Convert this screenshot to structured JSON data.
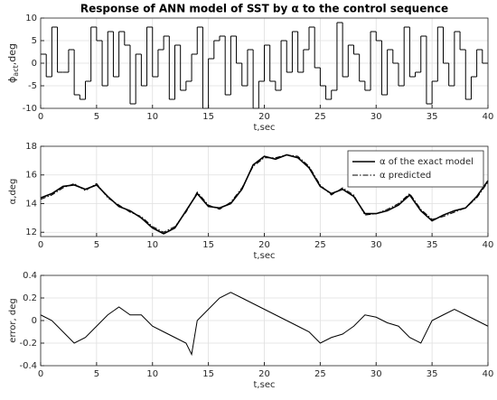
{
  "chart_data": [
    {
      "type": "step",
      "title": "Response of ANN model of SST by α to the control sequence",
      "ylabel": [
        "ϕ",
        "act",
        ",deg"
      ],
      "xlabel": "t,sec",
      "xlim": [
        0,
        40
      ],
      "xticks": [
        0,
        5,
        10,
        15,
        20,
        25,
        30,
        35,
        40
      ],
      "ylim": [
        -10,
        10
      ],
      "yticks": [
        -10,
        -5,
        0,
        5,
        10
      ],
      "grid": true,
      "x": [
        0,
        0.5,
        1,
        1.5,
        2,
        2.5,
        3,
        3.5,
        4,
        4.5,
        5,
        5.5,
        6,
        6.5,
        7,
        7.5,
        8,
        8.5,
        9,
        9.5,
        10,
        10.5,
        11,
        11.5,
        12,
        12.5,
        13,
        13.5,
        14,
        14.5,
        15,
        15.5,
        16,
        16.5,
        17,
        17.5,
        18,
        18.5,
        19,
        19.5,
        20,
        20.5,
        21,
        21.5,
        22,
        22.5,
        23,
        23.5,
        24,
        24.5,
        25,
        25.5,
        26,
        26.5,
        27,
        27.5,
        28,
        28.5,
        29,
        29.5,
        30,
        30.5,
        31,
        31.5,
        32,
        32.5,
        33,
        33.5,
        34,
        34.5,
        35,
        35.5,
        36,
        36.5,
        37,
        37.5,
        38,
        38.5,
        39,
        39.5
      ],
      "series": [
        {
          "color": "#000000",
          "values": [
            2,
            -3,
            8,
            -2,
            -2,
            3,
            -7,
            -8,
            -4,
            8,
            5,
            -5,
            7,
            -3,
            7,
            4,
            -9,
            2,
            -5,
            8,
            -3,
            3,
            6,
            -8,
            4,
            -6,
            -4,
            2,
            8,
            -10,
            1,
            5,
            6,
            -7,
            6,
            0,
            -5,
            3,
            -10,
            -4,
            4,
            -4,
            -6,
            5,
            -2,
            7,
            -2,
            3,
            8,
            -1,
            -5,
            -8,
            -6,
            9,
            -3,
            4,
            2,
            -4,
            -6,
            7,
            5,
            -7,
            3,
            0,
            -5,
            8,
            -3,
            -2,
            6,
            -9,
            -4,
            8,
            0,
            -5,
            7,
            3,
            -8,
            -3,
            3,
            0
          ]
        }
      ]
    },
    {
      "type": "line",
      "ylabel": "α,deg",
      "xlabel": "t,sec",
      "xlim": [
        0,
        40
      ],
      "xticks": [
        0,
        5,
        10,
        15,
        20,
        25,
        30,
        35,
        40
      ],
      "ylim": [
        11.7,
        18
      ],
      "yticks": [
        12,
        14,
        16,
        18
      ],
      "grid": true,
      "legend": "upper right",
      "x": [
        0,
        1,
        2,
        3,
        4,
        5,
        6,
        7,
        8,
        9,
        10,
        11,
        12,
        13,
        14,
        15,
        16,
        17,
        18,
        19,
        20,
        21,
        22,
        23,
        24,
        25,
        26,
        27,
        28,
        29,
        30,
        31,
        32,
        33,
        34,
        35,
        36,
        37,
        38,
        39,
        40
      ],
      "series": [
        {
          "name": "α of the exact model",
          "color": "#000000",
          "style": "solid",
          "values": [
            14.4,
            14.7,
            15.2,
            15.3,
            15.0,
            15.3,
            14.5,
            13.8,
            13.5,
            13.0,
            12.3,
            11.9,
            12.3,
            13.5,
            14.7,
            13.8,
            13.7,
            14.0,
            15.0,
            16.7,
            17.3,
            17.1,
            17.4,
            17.2,
            16.5,
            15.2,
            14.7,
            15.0,
            14.5,
            13.3,
            13.3,
            13.5,
            13.9,
            14.6,
            13.5,
            12.8,
            13.2,
            13.5,
            13.7,
            14.5,
            15.6
          ]
        },
        {
          "name": "α predicted",
          "color": "#000000",
          "style": "dashdot",
          "values": [
            14.3,
            14.6,
            15.1,
            15.4,
            14.9,
            15.4,
            14.4,
            13.9,
            13.4,
            13.1,
            12.4,
            12.0,
            12.4,
            13.4,
            14.8,
            13.9,
            13.6,
            14.1,
            15.1,
            16.6,
            17.2,
            17.2,
            17.4,
            17.3,
            16.6,
            15.3,
            14.6,
            15.1,
            14.6,
            13.2,
            13.3,
            13.6,
            14.0,
            14.7,
            13.6,
            12.9,
            13.1,
            13.4,
            13.7,
            14.4,
            15.5
          ]
        }
      ]
    },
    {
      "type": "line",
      "ylabel": "error, deg",
      "xlabel": "t,sec",
      "xlim": [
        0,
        40
      ],
      "xticks": [
        0,
        5,
        10,
        15,
        20,
        25,
        30,
        35,
        40
      ],
      "ylim": [
        -0.4,
        0.4
      ],
      "yticks": [
        -0.4,
        -0.2,
        0,
        0.2,
        0.4
      ],
      "grid": true,
      "x": [
        0,
        1,
        2,
        3,
        4,
        5,
        6,
        7,
        8,
        9,
        10,
        11,
        12,
        13,
        13.5,
        14,
        15,
        16,
        17,
        18,
        19,
        20,
        21,
        22,
        23,
        24,
        25,
        26,
        27,
        28,
        29,
        30,
        31,
        32,
        33,
        34,
        35,
        36,
        37,
        38,
        39,
        40
      ],
      "series": [
        {
          "color": "#000000",
          "style": "solid",
          "values": [
            0.05,
            0.0,
            -0.1,
            -0.2,
            -0.15,
            -0.05,
            0.05,
            0.12,
            0.05,
            0.05,
            -0.05,
            -0.1,
            -0.15,
            -0.2,
            -0.3,
            0.0,
            0.1,
            0.2,
            0.25,
            0.2,
            0.15,
            0.1,
            0.05,
            0.0,
            -0.05,
            -0.1,
            -0.2,
            -0.15,
            -0.12,
            -0.05,
            0.05,
            0.03,
            -0.02,
            -0.05,
            -0.15,
            -0.2,
            0.0,
            0.05,
            0.1,
            0.05,
            0.0,
            -0.05
          ]
        }
      ]
    }
  ]
}
